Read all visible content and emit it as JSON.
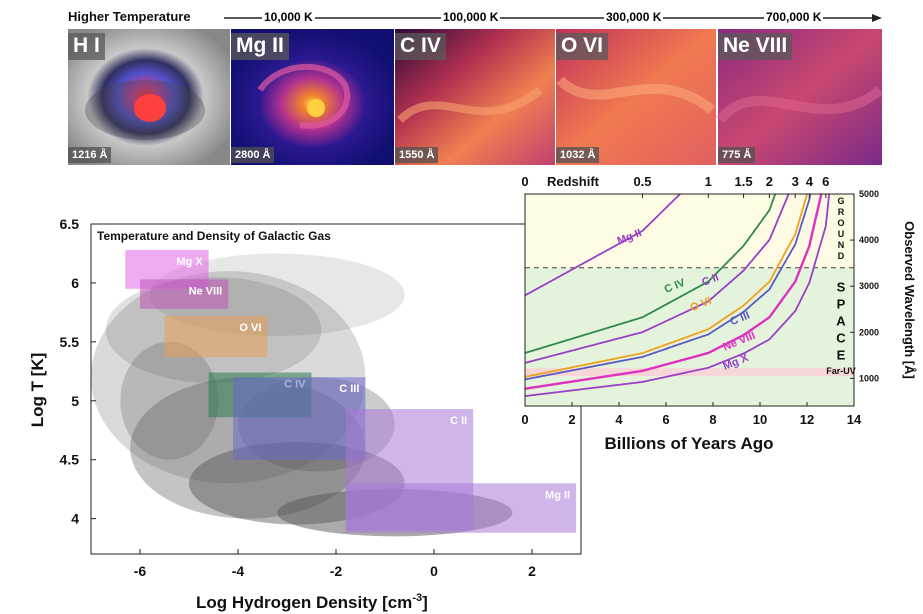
{
  "temperature_bar": {
    "label": "Higher Temperature",
    "marks": [
      "10,000 K",
      "100,000 K",
      "300,000 K",
      "700,000 K"
    ]
  },
  "panels": [
    {
      "ion": "H I",
      "wavelength": "1216 Å"
    },
    {
      "ion": "Mg II",
      "wavelength": "2800 Å"
    },
    {
      "ion": "C IV",
      "wavelength": "1550 Å"
    },
    {
      "ion": "O VI",
      "wavelength": "1032 Å"
    },
    {
      "ion": "Ne VIII",
      "wavelength": "775 Å"
    }
  ],
  "colors": {
    "hi_bg": "#a8a8a8",
    "mgii_bg": "#1a1a8c",
    "heat": "#e8703a",
    "chart_bg_upper": "#fdfbe4",
    "chart_bg_lower": "#e4f4dc",
    "far_uv_band": "#f6d6d6"
  },
  "chart_data": [
    {
      "type": "scatter",
      "title": "Temperature and Density of Galactic Gas",
      "xlabel": "Log Hydrogen Density [cm",
      "xlabel_sup": "-3",
      "xlabel_end": "]",
      "ylabel": "Log T [K]",
      "xlim": [
        -7,
        3
      ],
      "ylim": [
        3.7,
        6.5
      ],
      "x_ticks": [
        "-6",
        "-4",
        "-2",
        "0",
        "2"
      ],
      "y_ticks": [
        "4",
        "4.5",
        "5",
        "5.5",
        "6",
        "6.5"
      ],
      "ion_regions": [
        {
          "name": "Mg X",
          "x": [
            -6.3,
            -4.6
          ],
          "y": [
            5.95,
            6.28
          ],
          "color": "#e066e6"
        },
        {
          "name": "Ne VIII",
          "x": [
            -6.0,
            -4.2
          ],
          "y": [
            5.78,
            6.03
          ],
          "color": "#c055b8"
        },
        {
          "name": "O VI",
          "x": [
            -5.5,
            -3.4
          ],
          "y": [
            5.37,
            5.72
          ],
          "color": "#e8a055"
        },
        {
          "name": "C IV",
          "x": [
            -4.6,
            -2.5
          ],
          "y": [
            4.86,
            5.24
          ],
          "color": "#2f7a4f"
        },
        {
          "name": "C III",
          "x": [
            -4.1,
            -1.4
          ],
          "y": [
            4.5,
            5.2
          ],
          "color": "#6a6acc"
        },
        {
          "name": "C II",
          "x": [
            -1.8,
            0.8
          ],
          "y": [
            3.9,
            4.93
          ],
          "color": "#a878d8"
        },
        {
          "name": "Mg II",
          "x": [
            -1.8,
            2.9
          ],
          "y": [
            3.88,
            4.3
          ],
          "color": "#a878d8"
        }
      ]
    },
    {
      "type": "line",
      "xlabel": "Billions of Years Ago",
      "ylabel": "Observed Wavelength [Å]",
      "top_axis_label": "Redshift",
      "xlim": [
        0,
        14
      ],
      "ylim": [
        400,
        5000
      ],
      "x_ticks": [
        "0",
        "2",
        "4",
        "6",
        "8",
        "10",
        "12",
        "14"
      ],
      "y_ticks": [
        "1000",
        "2000",
        "3000",
        "4000",
        "5000"
      ],
      "redshift_ticks": [
        {
          "label": "0",
          "lookback": 0
        },
        {
          "label": "0.5",
          "lookback": 5.0
        },
        {
          "label": "1",
          "lookback": 7.8
        },
        {
          "label": "1.5",
          "lookback": 9.3
        },
        {
          "label": "2",
          "lookback": 10.4
        },
        {
          "label": "3",
          "lookback": 11.5
        },
        {
          "label": "4",
          "lookback": 12.1
        },
        {
          "label": "6",
          "lookback": 12.8
        }
      ],
      "ground_space_boundary": 3400,
      "far_uv_range": [
        1050,
        1220
      ],
      "zone_labels": {
        "ground": "GROUND",
        "space": "SPACE",
        "far_uv": "Far-UV"
      },
      "series": [
        {
          "name": "Mg II",
          "rest": 2800,
          "color": "#9a3fc6"
        },
        {
          "name": "C IV",
          "rest": 1550,
          "color": "#2e8a4a"
        },
        {
          "name": "C II",
          "rest": 1335,
          "color": "#9a3fc6"
        },
        {
          "name": "O VI",
          "rest": 1032,
          "color": "#f0a020"
        },
        {
          "name": "C III",
          "rest": 977,
          "color": "#5a5ac0"
        },
        {
          "name": "Ne VIII",
          "rest": 775,
          "color": "#e030c0"
        },
        {
          "name": "Mg X",
          "rest": 615,
          "color": "#9a3fc6"
        }
      ]
    }
  ]
}
